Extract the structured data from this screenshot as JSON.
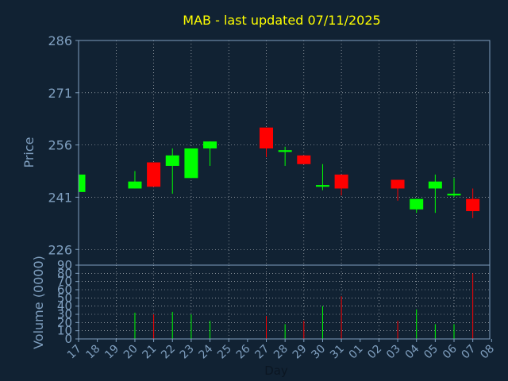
{
  "chart_data": {
    "type": "candlestick",
    "title": "MAB - last updated 07/11/2025",
    "colors": {
      "background": "#112233",
      "text": "#7f9fbf",
      "title": "#ffff00",
      "grid": "#ffffff",
      "up": "#00ff00",
      "down": "#ff0000"
    },
    "price_panel": {
      "ylabel": "Price",
      "ylim": [
        221.5,
        286
      ],
      "yticks": [
        226,
        241,
        256,
        271,
        286
      ],
      "grid": true
    },
    "volume_panel": {
      "ylabel": "Volume (0000)",
      "ylim": [
        0,
        90
      ],
      "yticks": [
        0,
        10,
        20,
        30,
        40,
        50,
        60,
        70,
        80,
        90
      ],
      "grid": true
    },
    "xlabel": "Day",
    "xticks": [
      "17",
      "18",
      "19",
      "20",
      "21",
      "22",
      "23",
      "24",
      "25",
      "26",
      "27",
      "28",
      "29",
      "30",
      "31",
      "01",
      "02",
      "03",
      "04",
      "05",
      "06",
      "07",
      "08"
    ],
    "candles": [
      {
        "x": 0,
        "open": 242.5,
        "close": 247.5,
        "high": 247.5,
        "low": 242.5,
        "volume": 0
      },
      {
        "x": 3,
        "open": 243.5,
        "close": 245.5,
        "high": 248.5,
        "low": 243.5,
        "volume": 32
      },
      {
        "x": 4,
        "open": 251.0,
        "close": 244.0,
        "high": 251.0,
        "low": 244.0,
        "volume": 30
      },
      {
        "x": 5,
        "open": 250.0,
        "close": 253.0,
        "high": 255.0,
        "low": 242.0,
        "volume": 33
      },
      {
        "x": 6,
        "open": 246.5,
        "close": 255.0,
        "high": 255.0,
        "low": 246.5,
        "volume": 30
      },
      {
        "x": 7,
        "open": 255.0,
        "close": 257.0,
        "high": 257.0,
        "low": 250.0,
        "volume": 22
      },
      {
        "x": 10,
        "open": 261.0,
        "close": 255.0,
        "high": 261.0,
        "low": 252.5,
        "volume": 28
      },
      {
        "x": 11,
        "open": 254.0,
        "close": 254.5,
        "high": 255.5,
        "low": 250.0,
        "volume": 18
      },
      {
        "x": 12,
        "open": 253.0,
        "close": 250.5,
        "high": 253.0,
        "low": 250.5,
        "volume": 22
      },
      {
        "x": 13,
        "open": 244.0,
        "close": 244.5,
        "high": 250.5,
        "low": 243.0,
        "volume": 40
      },
      {
        "x": 14,
        "open": 247.5,
        "close": 243.5,
        "high": 247.5,
        "low": 241.5,
        "volume": 52
      },
      {
        "x": 17,
        "open": 246.0,
        "close": 243.5,
        "high": 246.0,
        "low": 240.0,
        "volume": 22
      },
      {
        "x": 18,
        "open": 237.5,
        "close": 240.5,
        "high": 240.5,
        "low": 236.5,
        "volume": 36
      },
      {
        "x": 19,
        "open": 243.5,
        "close": 245.5,
        "high": 247.5,
        "low": 236.5,
        "volume": 18
      },
      {
        "x": 20,
        "open": 241.5,
        "close": 242.0,
        "high": 246.5,
        "low": 241.0,
        "volume": 18
      },
      {
        "x": 21,
        "open": 240.5,
        "close": 237.0,
        "high": 243.5,
        "low": 235.0,
        "volume": 80
      }
    ]
  }
}
